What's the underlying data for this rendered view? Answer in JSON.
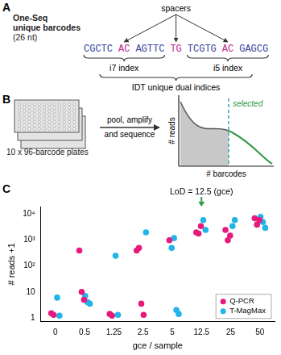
{
  "panel_labels": [
    "A",
    "B",
    "C"
  ],
  "panel_a": {
    "title_lines": [
      "One-Seq",
      "unique barcodes",
      "(26 nt)"
    ],
    "spacers_label": "spacers",
    "i7": {
      "label": "i7 index",
      "parts": [
        "CGCTC",
        "AC",
        "AGTTC"
      ]
    },
    "spacer": "TG",
    "i5": {
      "label": "i5 index",
      "parts": [
        "TCGTG",
        "AC",
        "GAGCG"
      ]
    },
    "group_label": "IDT unique dual indices"
  },
  "panel_b": {
    "plates_label": "10 x 96-barcode plates",
    "step_lines": [
      "pool, amplify",
      "and sequence"
    ],
    "y_label": "# reads",
    "x_label": "# barcodes",
    "selected_label": "selected"
  },
  "chart_data": {
    "type": "scatter",
    "x_label": "gce / sample",
    "y_label": "# reads +1",
    "categories": [
      "0",
      "0.5",
      "1.25",
      "2.5",
      "5",
      "12.5",
      "25",
      "50"
    ],
    "series": [
      {
        "name": "Q-PCR",
        "color": "#e6197d",
        "values": [
          [
            1.5,
            1.3
          ],
          [
            400,
            10,
            5
          ],
          [
            1.4,
            1.2
          ],
          [
            400,
            500,
            3.5,
            1.3
          ],
          [
            1000
          ],
          [
            2000,
            1800,
            3500
          ],
          [
            2500,
            1000,
            1500
          ],
          [
            7000,
            4000,
            6000
          ]
        ]
      },
      {
        "name": "T-MagMax",
        "color": "#22b4e8",
        "values": [
          [
            6,
            1.2
          ],
          [
            7,
            4,
            3.5
          ],
          [
            250,
            1.3
          ],
          [
            2000
          ],
          [
            500,
            1200,
            2,
            1.4
          ],
          [
            6000,
            2500
          ],
          [
            3500,
            6000
          ],
          [
            8000,
            5000,
            3000
          ]
        ]
      }
    ],
    "log": "y",
    "ylim": [
      0.7,
      20000
    ],
    "yticks": [
      1,
      10,
      {
        "value": 100,
        "label": "10²"
      },
      {
        "value": 1000,
        "label": "10³"
      },
      {
        "value": 10000,
        "label": "10⁴"
      }
    ],
    "grid": false,
    "legend": "lower right",
    "marker": "circle",
    "annotations": [
      {
        "text": "LoD = 12.5 (gce)",
        "x": "12.5"
      }
    ]
  }
}
